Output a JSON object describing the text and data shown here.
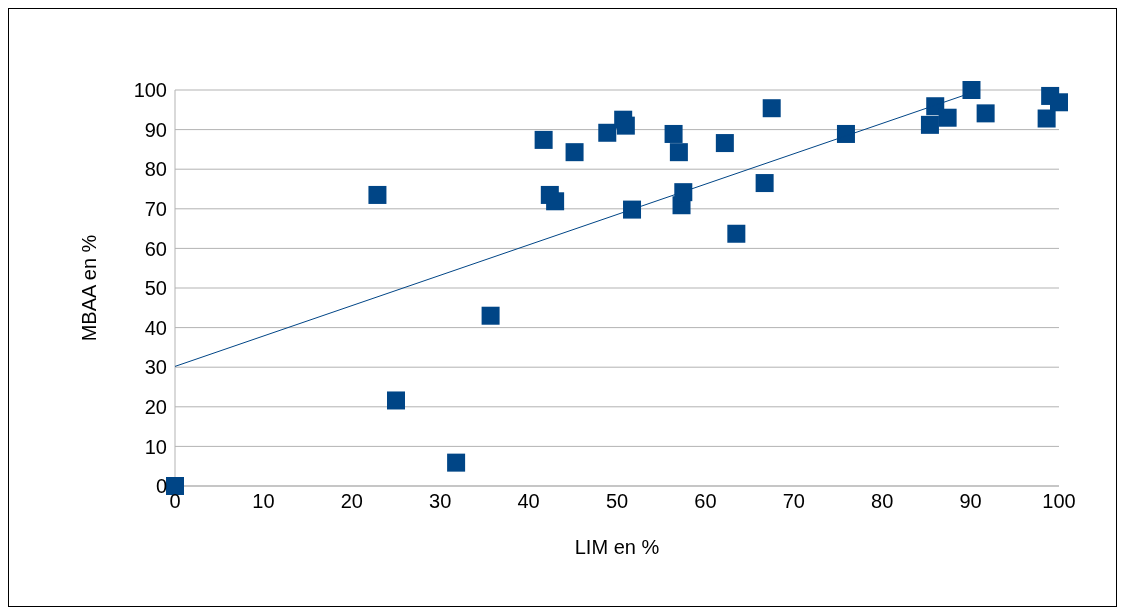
{
  "chart_data": {
    "type": "scatter",
    "xlabel": "LIM en %",
    "ylabel": "MBAA en %",
    "xlim": [
      0,
      100
    ],
    "ylim": [
      0,
      100
    ],
    "xticks": [
      0,
      10,
      20,
      30,
      40,
      50,
      60,
      70,
      80,
      90,
      100
    ],
    "yticks": [
      0,
      10,
      20,
      30,
      40,
      50,
      60,
      70,
      80,
      90,
      100
    ],
    "grid": "y",
    "legend": false,
    "marker": "square",
    "series": [
      {
        "color": "#004586",
        "x": [
          0,
          22.9,
          25.0,
          31.8,
          35.7,
          41.7,
          42.4,
          43.0,
          45.2,
          48.9,
          50.7,
          51.0,
          51.7,
          56.4,
          57.0,
          57.3,
          57.5,
          62.2,
          63.5,
          66.7,
          67.5,
          75.9,
          85.4,
          86.0,
          87.4,
          90.1,
          91.7,
          98.6,
          99.0,
          100
        ],
        "values": [
          0,
          73.5,
          21.6,
          5.9,
          43,
          87.4,
          73.5,
          71.9,
          84.3,
          89.2,
          92.5,
          91,
          69.8,
          88.9,
          84.3,
          70.9,
          74.2,
          86.6,
          63.7,
          76.5,
          95.4,
          88.9,
          91.2,
          95.9,
          93,
          100,
          94.1,
          92.8,
          98.5,
          96.9
        ]
      },
      {
        "type": "line",
        "color": "#004586",
        "marker": "none",
        "x": [
          0,
          91
        ],
        "values": [
          30.2,
          100
        ]
      }
    ]
  }
}
